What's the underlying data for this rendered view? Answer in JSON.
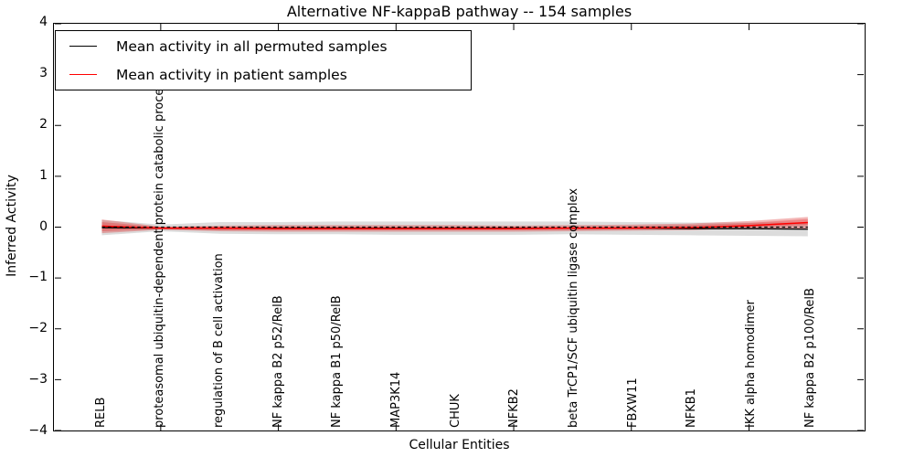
{
  "figure": {
    "background": "#ffffff"
  },
  "chart_data": {
    "type": "line",
    "title": "Alternative NF-kappaB pathway -- 154 samples",
    "xlabel": "Cellular Entities",
    "ylabel": "Inferred Activity",
    "ylim": [
      -4,
      4
    ],
    "ytick_labels": [
      "4",
      "3",
      "2",
      "1",
      "0",
      "−1",
      "−2",
      "−3",
      "−4"
    ],
    "ytick_values": [
      4,
      3,
      2,
      1,
      0,
      -1,
      -2,
      -3,
      -4
    ],
    "grid": false,
    "legend_position": "upper left",
    "categories": [
      "RELB",
      "proteasomal ubiquitin-dependent protein catabolic process",
      "regulation of B cell activation",
      "NF kappa B2 p52/RelB",
      "NF kappa B1 p50/RelB",
      "MAP3K14",
      "CHUK",
      "NFKB2",
      "beta TrCP1/SCF ubiquitin ligase complex",
      "FBXW11",
      "NFKB1",
      "IKK alpha homodimer",
      "NF kappa B2 p100/RelB"
    ],
    "series": [
      {
        "name": "Mean activity in all permuted samples",
        "color": "#000000",
        "style": "solid",
        "values": [
          -0.01,
          -0.02,
          -0.02,
          -0.02,
          -0.02,
          -0.02,
          -0.02,
          -0.02,
          -0.02,
          -0.02,
          -0.03,
          -0.03,
          -0.04
        ],
        "band": {
          "label": "permuted-std-band",
          "color": "rgba(128,128,128,0.28)",
          "lo": [
            -0.16,
            -0.08,
            -0.13,
            -0.14,
            -0.14,
            -0.15,
            -0.15,
            -0.15,
            -0.14,
            -0.15,
            -0.16,
            -0.17,
            -0.18
          ],
          "hi": [
            0.14,
            0.05,
            0.1,
            0.1,
            0.11,
            0.11,
            0.11,
            0.11,
            0.11,
            0.1,
            0.09,
            0.09,
            0.09
          ]
        }
      },
      {
        "name": "Mean activity in patient samples",
        "color": "#ff0000",
        "style": "solid",
        "values": [
          0.02,
          -0.02,
          -0.02,
          -0.03,
          -0.03,
          -0.03,
          -0.03,
          -0.03,
          -0.02,
          -0.02,
          -0.01,
          0.03,
          0.09
        ],
        "band_outer": {
          "label": "patient-std-band",
          "color": "rgba(224,64,64,0.38)",
          "lo": [
            -0.12,
            -0.05,
            -0.08,
            -0.09,
            -0.09,
            -0.09,
            -0.09,
            -0.09,
            -0.08,
            -0.07,
            -0.06,
            -0.02,
            -0.04
          ],
          "hi": [
            0.15,
            0.01,
            0.03,
            0.04,
            0.04,
            0.04,
            0.04,
            0.03,
            0.04,
            0.05,
            0.07,
            0.12,
            0.2
          ]
        },
        "band_inner": {
          "label": "patient-sem-band",
          "color": "rgba(224,48,48,0.35)",
          "lo": [
            -0.08,
            -0.04,
            -0.06,
            -0.06,
            -0.06,
            -0.06,
            -0.06,
            -0.06,
            -0.05,
            -0.04,
            -0.03,
            0.0,
            0.04
          ],
          "hi": [
            0.1,
            0.0,
            0.01,
            0.01,
            0.01,
            0.0,
            0.0,
            0.0,
            0.01,
            0.02,
            0.04,
            0.08,
            0.16
          ]
        }
      }
    ],
    "reference_line": {
      "y": 0,
      "color": "#000000",
      "style": "dashed"
    },
    "legend": {
      "entries": [
        {
          "label": "Mean activity in all permuted samples",
          "color": "#000000"
        },
        {
          "label": "Mean activity in patient samples",
          "color": "#ff0000"
        }
      ]
    },
    "x_ticks_at_category_indices": [
      1,
      3,
      5,
      7,
      9,
      11
    ]
  }
}
